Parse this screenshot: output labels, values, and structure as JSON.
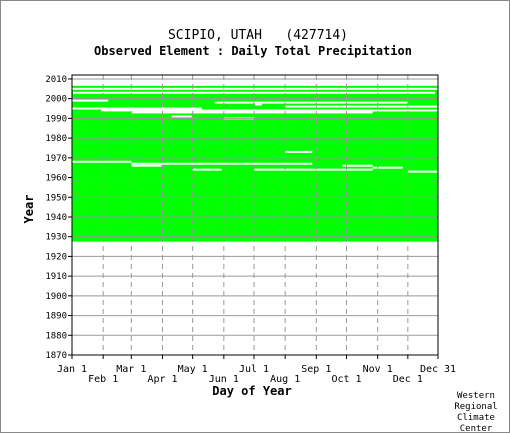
{
  "chart_data": {
    "type": "heatmap",
    "title": "SCIPIO, UTAH   (427714)",
    "subtitle": "Observed Element : Daily Total Precipitation",
    "xlabel": "Day of Year",
    "ylabel": "Year",
    "xlim": [
      1,
      365
    ],
    "ylim": [
      1870,
      2012
    ],
    "y_ticks": [
      2010,
      2000,
      1990,
      1980,
      1970,
      1960,
      1950,
      1940,
      1930,
      1920,
      1910,
      1900,
      1890,
      1880,
      1870
    ],
    "x_ticks_top_row": [
      {
        "label": "Jan 1",
        "day": 1
      },
      {
        "label": "Mar 1",
        "day": 60
      },
      {
        "label": "May 1",
        "day": 121
      },
      {
        "label": "Jul 1",
        "day": 182
      },
      {
        "label": "Sep 1",
        "day": 244
      },
      {
        "label": "Nov 1",
        "day": 305
      },
      {
        "label": "Dec 31",
        "day": 365
      }
    ],
    "x_ticks_bottom_row": [
      {
        "label": "Feb 1",
        "day": 32
      },
      {
        "label": "Apr 1",
        "day": 91
      },
      {
        "label": "Jun 1",
        "day": 152
      },
      {
        "label": "Aug 1",
        "day": 213
      },
      {
        "label": "Oct 1",
        "day": 274
      },
      {
        "label": "Dec 1",
        "day": 335
      }
    ],
    "grid": true,
    "legend": "none",
    "colors": {
      "observed": "#00ff00",
      "missing": "#ffffff",
      "grid": "#999999"
    },
    "coverage": {
      "description": "Green = day with observation; white = missing",
      "year_start": 1928,
      "year_end": 2006,
      "missing_spans": [
        {
          "year": 2005,
          "start_day": 1,
          "end_day": 365
        },
        {
          "year": 2003,
          "start_day": 2,
          "end_day": 362
        },
        {
          "year": 1999,
          "start_day": 1,
          "end_day": 37
        },
        {
          "year": 1998,
          "start_day": 143,
          "end_day": 335
        },
        {
          "year": 1997,
          "start_day": 183,
          "end_day": 190
        },
        {
          "year": 1996,
          "start_day": 213,
          "end_day": 365
        },
        {
          "year": 1995,
          "start_day": 1,
          "end_day": 130
        },
        {
          "year": 1994,
          "start_day": 30,
          "end_day": 365
        },
        {
          "year": 1993,
          "start_day": 60,
          "end_day": 300
        },
        {
          "year": 1991,
          "start_day": 100,
          "end_day": 120
        },
        {
          "year": 1990,
          "start_day": 152,
          "end_day": 182
        },
        {
          "year": 1973,
          "start_day": 213,
          "end_day": 240
        },
        {
          "year": 1968,
          "start_day": 1,
          "end_day": 60
        },
        {
          "year": 1967,
          "start_day": 60,
          "end_day": 240
        },
        {
          "year": 1966,
          "start_day": 60,
          "end_day": 90
        },
        {
          "year": 1966,
          "start_day": 270,
          "end_day": 300
        },
        {
          "year": 1965,
          "start_day": 300,
          "end_day": 330
        },
        {
          "year": 1964,
          "start_day": 121,
          "end_day": 150
        },
        {
          "year": 1964,
          "start_day": 182,
          "end_day": 300
        },
        {
          "year": 1963,
          "start_day": 335,
          "end_day": 365
        }
      ]
    }
  },
  "footer": {
    "line1": "Western",
    "line2": "Regional",
    "line3": "Climate",
    "line4": "Center"
  }
}
